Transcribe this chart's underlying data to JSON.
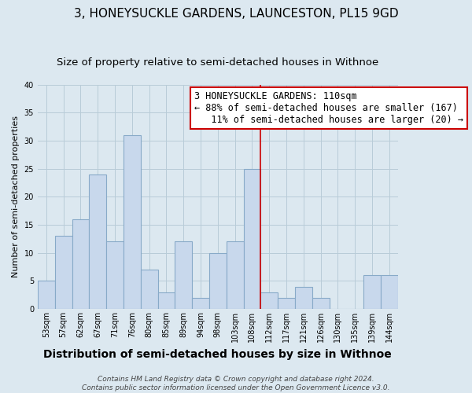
{
  "title": "3, HONEYSUCKLE GARDENS, LAUNCESTON, PL15 9GD",
  "subtitle": "Size of property relative to semi-detached houses in Withnoe",
  "xlabel": "Distribution of semi-detached houses by size in Withnoe",
  "ylabel": "Number of semi-detached properties",
  "bar_labels": [
    "53sqm",
    "57sqm",
    "62sqm",
    "67sqm",
    "71sqm",
    "76sqm",
    "80sqm",
    "85sqm",
    "89sqm",
    "94sqm",
    "98sqm",
    "103sqm",
    "108sqm",
    "112sqm",
    "117sqm",
    "121sqm",
    "126sqm",
    "130sqm",
    "135sqm",
    "139sqm",
    "144sqm"
  ],
  "bar_values": [
    5,
    13,
    16,
    24,
    12,
    31,
    7,
    3,
    12,
    2,
    10,
    12,
    25,
    3,
    2,
    4,
    2,
    0,
    0,
    6,
    6
  ],
  "bar_color": "#c8d8ec",
  "bar_edge_color": "#88aac8",
  "property_line_color": "#cc0000",
  "annotation_text": "3 HONEYSUCKLE GARDENS: 110sqm\n← 88% of semi-detached houses are smaller (167)\n   11% of semi-detached houses are larger (20) →",
  "annotation_box_color": "#ffffff",
  "annotation_border_color": "#cc0000",
  "ylim": [
    0,
    40
  ],
  "yticks": [
    0,
    5,
    10,
    15,
    20,
    25,
    30,
    35,
    40
  ],
  "footer1": "Contains HM Land Registry data © Crown copyright and database right 2024.",
  "footer2": "Contains public sector information licensed under the Open Government Licence v3.0.",
  "bg_color": "#dce8f0",
  "plot_bg_color": "#dce8f0",
  "grid_color": "#b8ccd8",
  "title_fontsize": 11,
  "subtitle_fontsize": 9.5,
  "xlabel_fontsize": 10,
  "ylabel_fontsize": 8,
  "tick_fontsize": 7,
  "annotation_fontsize": 8.5,
  "footer_fontsize": 6.5
}
